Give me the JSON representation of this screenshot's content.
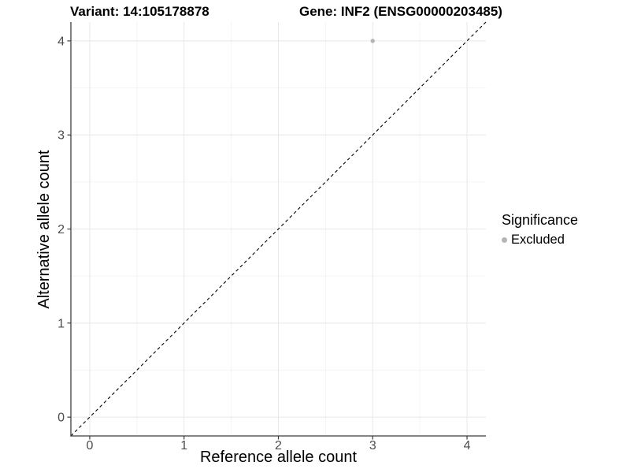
{
  "page": {
    "background": "#ffffff"
  },
  "header": {
    "variant_title": "Variant: 14:105178878",
    "gene_title": "Gene: INF2 (ENSG00000203485)"
  },
  "legend": {
    "title": "Significance",
    "items": [
      {
        "label": "Excluded",
        "color": "#b5b5b5"
      }
    ]
  },
  "chart_data": {
    "type": "scatter",
    "title_left": "Variant: 14:105178878",
    "title_right": "Gene: INF2 (ENSG00000203485)",
    "xlabel": "Reference allele count",
    "ylabel": "Alternative allele count",
    "xlim": [
      -0.2,
      4.2
    ],
    "ylim": [
      -0.2,
      4.2
    ],
    "x_ticks": [
      0,
      1,
      2,
      3,
      4
    ],
    "y_ticks": [
      0,
      1,
      2,
      3,
      4
    ],
    "x_minor_ticks": [
      0.5,
      1.5,
      2.5,
      3.5
    ],
    "y_minor_ticks": [
      0.5,
      1.5,
      2.5,
      3.5
    ],
    "grid": "major+minor",
    "legend_position": "right",
    "series": [
      {
        "name": "Excluded",
        "color": "#b5b5b5",
        "points": [
          {
            "x": 3,
            "y": 4
          }
        ]
      }
    ],
    "reference_line": {
      "type": "identity",
      "style": "dashed",
      "color": "#000000"
    },
    "style": {
      "panel_background": "#ffffff",
      "grid_major_color": "#e8e8e8",
      "grid_minor_color": "#f4f4f4",
      "axis_line_color": "#3c3c3c",
      "tick_label_color": "#4d4d4d"
    }
  }
}
